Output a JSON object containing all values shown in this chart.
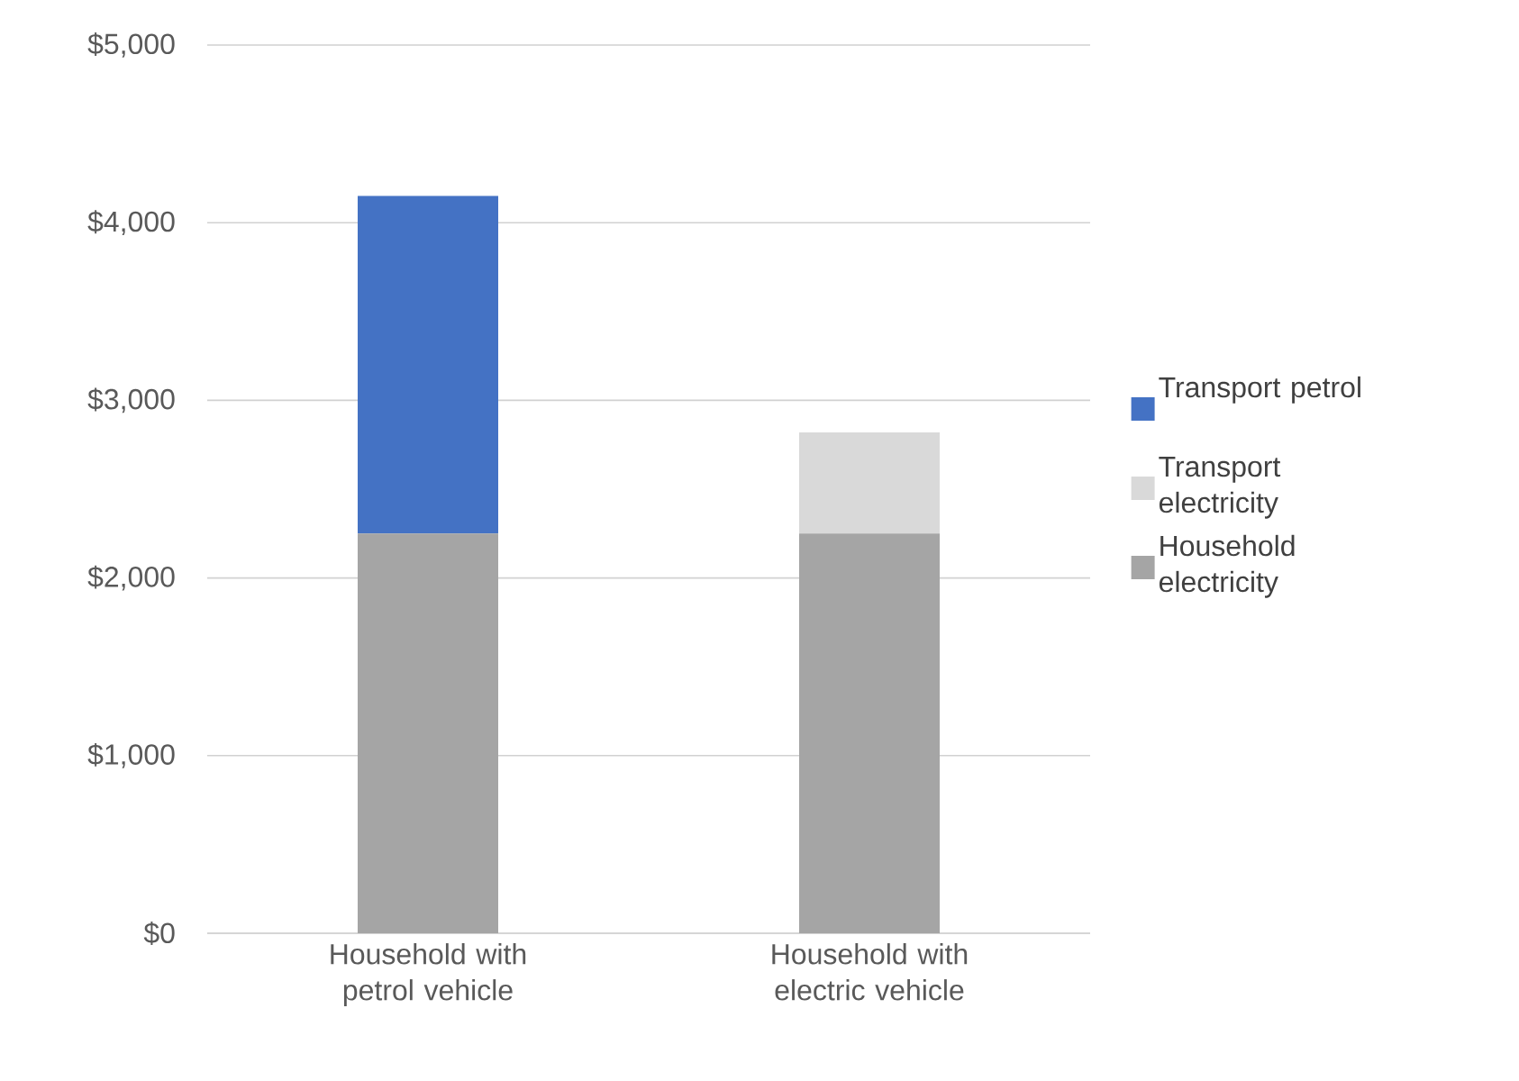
{
  "chart_data": {
    "type": "bar",
    "stacked": true,
    "categories": [
      "Household with petrol vehicle",
      "Household with electric vehicle"
    ],
    "series": [
      {
        "name": "Household electricity",
        "color": "#a5a5a5",
        "values": [
          2250,
          2250
        ]
      },
      {
        "name": "Transport electricity",
        "color": "#d9d9d9",
        "values": [
          0,
          570
        ]
      },
      {
        "name": "Transport petrol",
        "color": "#4472c4",
        "values": [
          1900,
          0
        ]
      }
    ],
    "ylim": [
      0,
      5000
    ],
    "yticks": [
      {
        "value": 0,
        "label": "$0"
      },
      {
        "value": 1000,
        "label": "$1,000"
      },
      {
        "value": 2000,
        "label": "$2,000"
      },
      {
        "value": 3000,
        "label": "$3,000"
      },
      {
        "value": 4000,
        "label": "$4,000"
      },
      {
        "value": 5000,
        "label": "$5,000"
      }
    ],
    "grid": "y",
    "legend": "right"
  }
}
